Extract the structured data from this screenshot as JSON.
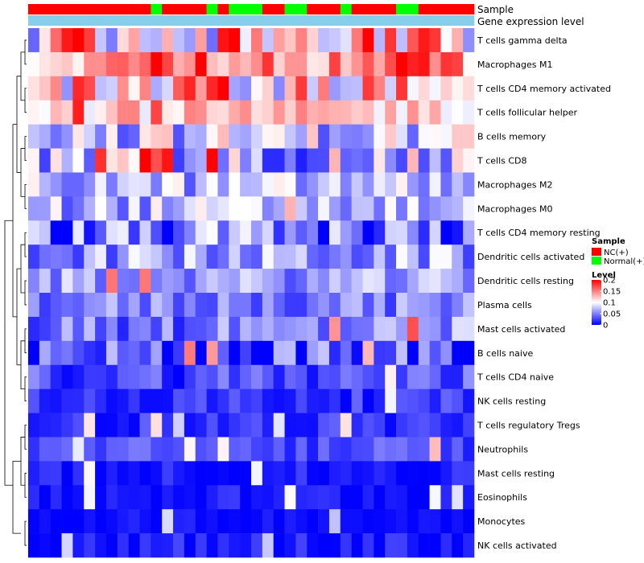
{
  "chart_data": {
    "type": "heatmap",
    "title": "",
    "annotation_tracks": [
      {
        "name": "Sample",
        "label": "Sample"
      },
      {
        "name": "Gene expression level",
        "label": "Gene expression level"
      }
    ],
    "sample_groups": [
      "NC",
      "NC",
      "NC",
      "NC",
      "NC",
      "NC",
      "NC",
      "NC",
      "NC",
      "NC",
      "NC",
      "Normal",
      "NC",
      "NC",
      "NC",
      "NC",
      "Normal",
      "NC",
      "Normal",
      "Normal",
      "Normal",
      "NC",
      "NC",
      "Normal",
      "Normal",
      "NC",
      "NC",
      "NC",
      "Normal",
      "NC",
      "NC",
      "NC",
      "NC",
      "Normal",
      "Normal",
      "NC",
      "NC",
      "NC",
      "NC",
      "NC"
    ],
    "rows": [
      "T cells gamma delta",
      "Macrophages M1",
      "T cells CD4 memory activated",
      "T cells follicular helper",
      "B cells memory",
      "T cells CD8",
      "Macrophages M2",
      "Macrophages M0",
      "T cells CD4 memory resting",
      "Dendritic cells activated",
      "Dendritic cells resting",
      "Plasma cells",
      "Mast cells activated",
      "B cells naive",
      "T cells CD4 naive",
      "NK cells resting",
      "T cells regulatory  Tregs",
      "Neutrophils",
      "Mast cells resting",
      "Eosinophils",
      "Monocytes",
      "NK cells activated"
    ],
    "legend": {
      "sample_title": "Sample",
      "sample_entries": [
        {
          "key": "NC",
          "label": "NC(+)",
          "color": "#ff0000"
        },
        {
          "key": "Normal",
          "label": "Normal(+)",
          "color": "#00ff00"
        }
      ],
      "level_title": "Level",
      "level_ticks": [
        {
          "value": 0.2,
          "label": "0.2"
        },
        {
          "value": 0.15,
          "label": "0.15"
        },
        {
          "value": 0.1,
          "label": "0.1"
        },
        {
          "value": 0.05,
          "label": "0.05"
        },
        {
          "value": 0,
          "label": "0"
        }
      ]
    },
    "color_scale": {
      "low": "#0000ff",
      "mid": "#ffffff",
      "high": "#ff0000",
      "min": 0,
      "mid_value": 0.1,
      "max": 0.2
    },
    "annotation_color": "#87ceeb"
  }
}
